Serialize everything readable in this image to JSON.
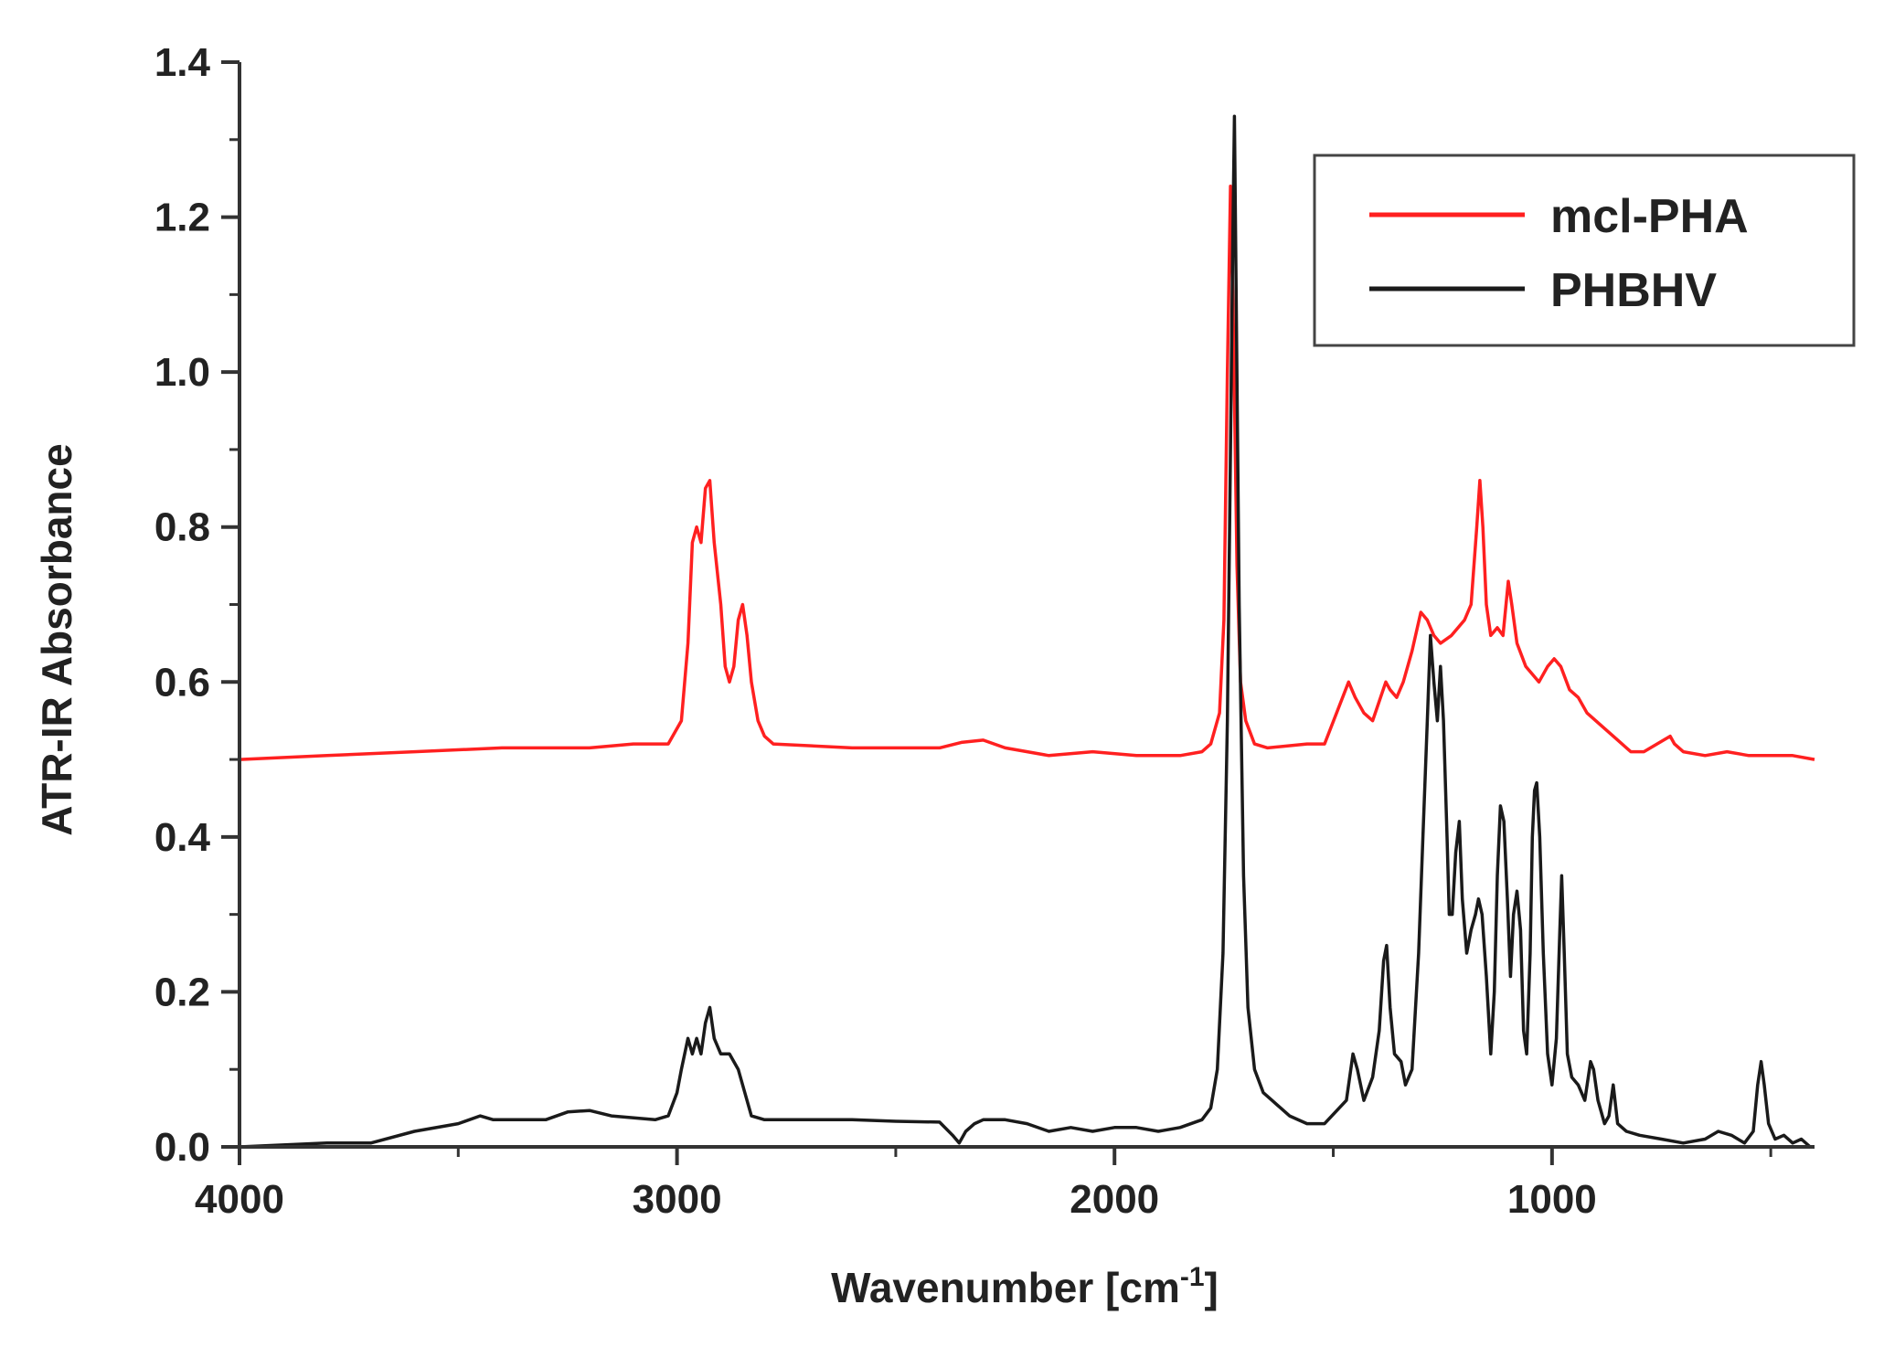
{
  "chart_data": {
    "type": "line",
    "title": "",
    "xlabel": "Wavenumber [cm",
    "xlabel_sup": "-1",
    "xlabel_close": "]",
    "ylabel": "ATR-IR Absorbance",
    "xlim": [
      4000,
      400
    ],
    "ylim": [
      0.0,
      1.4
    ],
    "x_reversed": true,
    "x_ticks": [
      4000,
      3000,
      2000,
      1000
    ],
    "x_tick_labels": [
      "4000",
      "3000",
      "2000",
      "1000"
    ],
    "y_ticks": [
      0.0,
      0.2,
      0.4,
      0.6,
      0.8,
      1.0,
      1.2,
      1.4
    ],
    "y_tick_labels": [
      "0.0",
      "0.2",
      "0.4",
      "0.6",
      "0.8",
      "1.0",
      "1.2",
      "1.4"
    ],
    "grid": false,
    "legend_position": "top-right",
    "series": [
      {
        "name": "mcl-PHA",
        "color": "#ff2020",
        "points": [
          [
            4000,
            0.5
          ],
          [
            3800,
            0.505
          ],
          [
            3600,
            0.51
          ],
          [
            3400,
            0.515
          ],
          [
            3200,
            0.515
          ],
          [
            3100,
            0.52
          ],
          [
            3020,
            0.52
          ],
          [
            2990,
            0.55
          ],
          [
            2975,
            0.65
          ],
          [
            2965,
            0.78
          ],
          [
            2955,
            0.8
          ],
          [
            2945,
            0.78
          ],
          [
            2935,
            0.85
          ],
          [
            2925,
            0.86
          ],
          [
            2915,
            0.78
          ],
          [
            2900,
            0.7
          ],
          [
            2890,
            0.62
          ],
          [
            2880,
            0.6
          ],
          [
            2870,
            0.62
          ],
          [
            2860,
            0.68
          ],
          [
            2850,
            0.7
          ],
          [
            2840,
            0.66
          ],
          [
            2830,
            0.6
          ],
          [
            2815,
            0.55
          ],
          [
            2800,
            0.53
          ],
          [
            2780,
            0.52
          ],
          [
            2600,
            0.515
          ],
          [
            2400,
            0.515
          ],
          [
            2350,
            0.522
          ],
          [
            2300,
            0.525
          ],
          [
            2250,
            0.515
          ],
          [
            2150,
            0.505
          ],
          [
            2050,
            0.51
          ],
          [
            1950,
            0.505
          ],
          [
            1850,
            0.505
          ],
          [
            1800,
            0.51
          ],
          [
            1780,
            0.52
          ],
          [
            1760,
            0.56
          ],
          [
            1750,
            0.68
          ],
          [
            1742,
            1.0
          ],
          [
            1735,
            1.24
          ],
          [
            1728,
            1.05
          ],
          [
            1720,
            0.75
          ],
          [
            1712,
            0.6
          ],
          [
            1700,
            0.55
          ],
          [
            1680,
            0.52
          ],
          [
            1650,
            0.515
          ],
          [
            1560,
            0.52
          ],
          [
            1520,
            0.52
          ],
          [
            1465,
            0.6
          ],
          [
            1450,
            0.58
          ],
          [
            1430,
            0.56
          ],
          [
            1410,
            0.55
          ],
          [
            1380,
            0.6
          ],
          [
            1370,
            0.59
          ],
          [
            1355,
            0.58
          ],
          [
            1340,
            0.6
          ],
          [
            1320,
            0.64
          ],
          [
            1300,
            0.69
          ],
          [
            1285,
            0.68
          ],
          [
            1270,
            0.66
          ],
          [
            1255,
            0.65
          ],
          [
            1230,
            0.66
          ],
          [
            1200,
            0.68
          ],
          [
            1185,
            0.7
          ],
          [
            1172,
            0.8
          ],
          [
            1165,
            0.86
          ],
          [
            1158,
            0.8
          ],
          [
            1150,
            0.7
          ],
          [
            1140,
            0.66
          ],
          [
            1125,
            0.67
          ],
          [
            1112,
            0.66
          ],
          [
            1100,
            0.73
          ],
          [
            1092,
            0.7
          ],
          [
            1080,
            0.65
          ],
          [
            1060,
            0.62
          ],
          [
            1045,
            0.61
          ],
          [
            1030,
            0.6
          ],
          [
            1010,
            0.62
          ],
          [
            995,
            0.63
          ],
          [
            980,
            0.62
          ],
          [
            960,
            0.59
          ],
          [
            940,
            0.58
          ],
          [
            920,
            0.56
          ],
          [
            900,
            0.55
          ],
          [
            880,
            0.54
          ],
          [
            860,
            0.53
          ],
          [
            840,
            0.52
          ],
          [
            820,
            0.51
          ],
          [
            790,
            0.51
          ],
          [
            760,
            0.52
          ],
          [
            730,
            0.53
          ],
          [
            720,
            0.52
          ],
          [
            700,
            0.51
          ],
          [
            650,
            0.505
          ],
          [
            600,
            0.51
          ],
          [
            550,
            0.505
          ],
          [
            500,
            0.505
          ],
          [
            450,
            0.505
          ],
          [
            400,
            0.5
          ]
        ]
      },
      {
        "name": "PHBHV",
        "color": "#1a1a1a",
        "points": [
          [
            4000,
            0.0
          ],
          [
            3800,
            0.005
          ],
          [
            3700,
            0.005
          ],
          [
            3600,
            0.02
          ],
          [
            3500,
            0.03
          ],
          [
            3450,
            0.04
          ],
          [
            3420,
            0.035
          ],
          [
            3300,
            0.035
          ],
          [
            3250,
            0.045
          ],
          [
            3200,
            0.047
          ],
          [
            3150,
            0.04
          ],
          [
            3050,
            0.035
          ],
          [
            3020,
            0.04
          ],
          [
            3000,
            0.07
          ],
          [
            2990,
            0.1
          ],
          [
            2975,
            0.14
          ],
          [
            2965,
            0.12
          ],
          [
            2955,
            0.14
          ],
          [
            2945,
            0.12
          ],
          [
            2935,
            0.16
          ],
          [
            2925,
            0.18
          ],
          [
            2915,
            0.14
          ],
          [
            2900,
            0.12
          ],
          [
            2880,
            0.12
          ],
          [
            2860,
            0.1
          ],
          [
            2845,
            0.07
          ],
          [
            2830,
            0.04
          ],
          [
            2800,
            0.035
          ],
          [
            2700,
            0.035
          ],
          [
            2600,
            0.035
          ],
          [
            2500,
            0.033
          ],
          [
            2400,
            0.032
          ],
          [
            2370,
            0.015
          ],
          [
            2355,
            0.005
          ],
          [
            2340,
            0.02
          ],
          [
            2320,
            0.03
          ],
          [
            2300,
            0.035
          ],
          [
            2250,
            0.035
          ],
          [
            2200,
            0.03
          ],
          [
            2150,
            0.02
          ],
          [
            2100,
            0.025
          ],
          [
            2050,
            0.02
          ],
          [
            2000,
            0.025
          ],
          [
            1950,
            0.025
          ],
          [
            1900,
            0.02
          ],
          [
            1850,
            0.025
          ],
          [
            1800,
            0.035
          ],
          [
            1780,
            0.05
          ],
          [
            1765,
            0.1
          ],
          [
            1752,
            0.25
          ],
          [
            1742,
            0.55
          ],
          [
            1735,
            0.9
          ],
          [
            1730,
            1.15
          ],
          [
            1726,
            1.33
          ],
          [
            1722,
            1.1
          ],
          [
            1715,
            0.7
          ],
          [
            1705,
            0.35
          ],
          [
            1695,
            0.18
          ],
          [
            1680,
            0.1
          ],
          [
            1660,
            0.07
          ],
          [
            1640,
            0.06
          ],
          [
            1600,
            0.04
          ],
          [
            1560,
            0.03
          ],
          [
            1520,
            0.03
          ],
          [
            1470,
            0.06
          ],
          [
            1455,
            0.12
          ],
          [
            1445,
            0.1
          ],
          [
            1430,
            0.06
          ],
          [
            1410,
            0.09
          ],
          [
            1395,
            0.15
          ],
          [
            1385,
            0.24
          ],
          [
            1378,
            0.26
          ],
          [
            1370,
            0.18
          ],
          [
            1360,
            0.12
          ],
          [
            1345,
            0.11
          ],
          [
            1335,
            0.08
          ],
          [
            1320,
            0.1
          ],
          [
            1305,
            0.25
          ],
          [
            1295,
            0.4
          ],
          [
            1285,
            0.55
          ],
          [
            1278,
            0.66
          ],
          [
            1270,
            0.6
          ],
          [
            1262,
            0.55
          ],
          [
            1255,
            0.62
          ],
          [
            1248,
            0.55
          ],
          [
            1240,
            0.4
          ],
          [
            1235,
            0.3
          ],
          [
            1228,
            0.3
          ],
          [
            1220,
            0.38
          ],
          [
            1212,
            0.42
          ],
          [
            1205,
            0.32
          ],
          [
            1195,
            0.25
          ],
          [
            1185,
            0.28
          ],
          [
            1175,
            0.3
          ],
          [
            1168,
            0.32
          ],
          [
            1160,
            0.3
          ],
          [
            1150,
            0.22
          ],
          [
            1140,
            0.12
          ],
          [
            1132,
            0.2
          ],
          [
            1125,
            0.35
          ],
          [
            1118,
            0.44
          ],
          [
            1110,
            0.42
          ],
          [
            1102,
            0.32
          ],
          [
            1095,
            0.22
          ],
          [
            1088,
            0.3
          ],
          [
            1080,
            0.33
          ],
          [
            1072,
            0.28
          ],
          [
            1065,
            0.15
          ],
          [
            1058,
            0.12
          ],
          [
            1050,
            0.25
          ],
          [
            1045,
            0.4
          ],
          [
            1040,
            0.46
          ],
          [
            1035,
            0.47
          ],
          [
            1028,
            0.4
          ],
          [
            1020,
            0.25
          ],
          [
            1010,
            0.12
          ],
          [
            1000,
            0.08
          ],
          [
            990,
            0.14
          ],
          [
            982,
            0.28
          ],
          [
            978,
            0.35
          ],
          [
            972,
            0.25
          ],
          [
            965,
            0.12
          ],
          [
            955,
            0.09
          ],
          [
            940,
            0.08
          ],
          [
            925,
            0.06
          ],
          [
            912,
            0.11
          ],
          [
            905,
            0.1
          ],
          [
            895,
            0.06
          ],
          [
            880,
            0.03
          ],
          [
            870,
            0.04
          ],
          [
            860,
            0.08
          ],
          [
            850,
            0.03
          ],
          [
            830,
            0.02
          ],
          [
            800,
            0.015
          ],
          [
            750,
            0.01
          ],
          [
            700,
            0.005
          ],
          [
            650,
            0.01
          ],
          [
            620,
            0.02
          ],
          [
            590,
            0.015
          ],
          [
            560,
            0.005
          ],
          [
            540,
            0.02
          ],
          [
            530,
            0.08
          ],
          [
            522,
            0.11
          ],
          [
            515,
            0.08
          ],
          [
            505,
            0.03
          ],
          [
            490,
            0.01
          ],
          [
            470,
            0.015
          ],
          [
            450,
            0.005
          ],
          [
            430,
            0.01
          ],
          [
            410,
            0.0
          ],
          [
            400,
            0.0
          ]
        ]
      }
    ]
  }
}
